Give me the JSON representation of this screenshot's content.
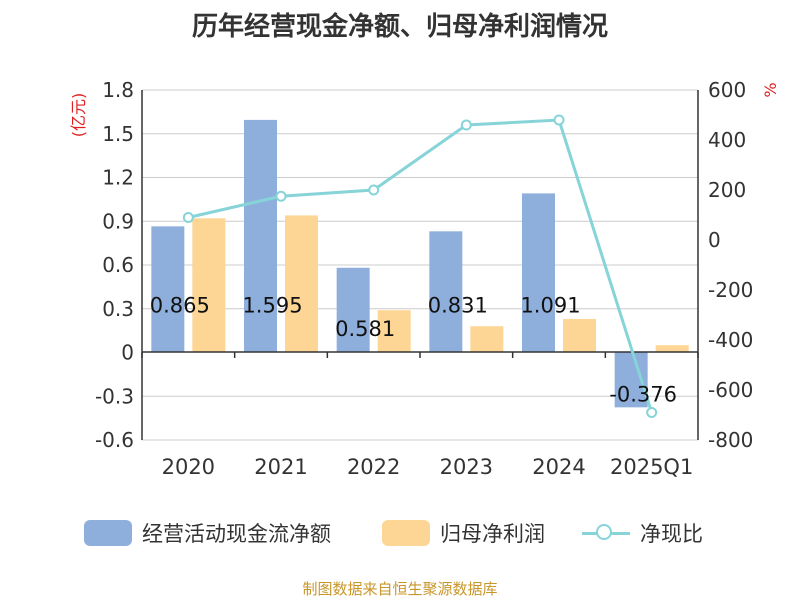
{
  "title": "历年经营现金净额、归母净利润情况",
  "source": "制图数据来自恒生聚源数据库",
  "colors": {
    "bar1": "#8eafdc",
    "bar2": "#fdd594",
    "line": "#86d4d8",
    "left_unit": "#e02020",
    "grid": "#cccccc",
    "axis": "#333333"
  },
  "chart_data": {
    "type": "bar",
    "categories": [
      "2020",
      "2021",
      "2022",
      "2023",
      "2024",
      "2025Q1"
    ],
    "left_axis": {
      "unit": "(亿元)",
      "min": -0.6,
      "max": 1.8,
      "ticks": [
        "-0.6",
        "-0.3",
        "0",
        "0.3",
        "0.6",
        "0.9",
        "1.2",
        "1.5",
        "1.8"
      ]
    },
    "right_axis": {
      "unit": "%",
      "min": -800,
      "max": 600,
      "ticks": [
        "-800",
        "-600",
        "-400",
        "-200",
        "0",
        "200",
        "400",
        "600"
      ]
    },
    "series": [
      {
        "name": "经营活动现金流净额",
        "type": "bar",
        "axis": "left",
        "values": [
          0.865,
          1.595,
          0.581,
          0.831,
          1.091,
          -0.376
        ],
        "labels": [
          "0.865",
          "1.595",
          "0.581",
          "0.831",
          "1.091",
          "-0.376"
        ]
      },
      {
        "name": "归母净利润",
        "type": "bar",
        "axis": "left",
        "values": [
          0.92,
          0.94,
          0.29,
          0.18,
          0.23,
          0.05
        ]
      },
      {
        "name": "净现比",
        "type": "line",
        "axis": "right",
        "values": [
          90,
          175,
          200,
          460,
          480,
          -690
        ]
      }
    ],
    "legend_position": "bottom",
    "grid": true
  }
}
